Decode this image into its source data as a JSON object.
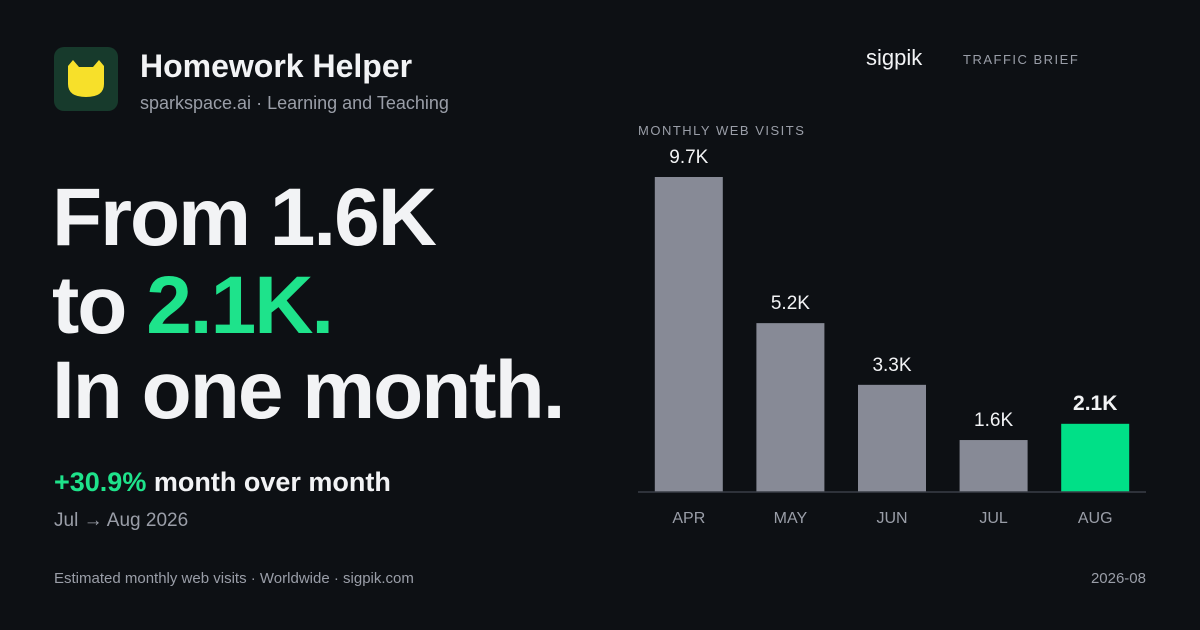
{
  "brand": {
    "title": "Homework Helper",
    "domain": "sparkspace.ai",
    "category": "Learning and Teaching"
  },
  "header": {
    "logo": "sigpik",
    "tag": "TRAFFIC BRIEF"
  },
  "headline": {
    "line1": "From 1.6K",
    "line2_prefix": "to",
    "line2_value": "2.1K.",
    "line3": "In one month."
  },
  "change": {
    "value": "+30.9%",
    "text": "month over month",
    "period": "Jul → Aug 2026"
  },
  "footer": {
    "source": "Estimated monthly web visits",
    "region": "Worldwide",
    "site": "sigpik.com",
    "date": "2026-08"
  },
  "chart_data": {
    "type": "bar",
    "title": "MONTHLY WEB VISITS",
    "categories": [
      "APR",
      "MAY",
      "JUN",
      "JUL",
      "AUG"
    ],
    "values": [
      9700,
      5200,
      3300,
      1600,
      2100
    ],
    "value_labels": [
      "9.7K",
      "5.2K",
      "3.3K",
      "1.6K",
      "2.1K"
    ],
    "colors": [
      "#878a96",
      "#878a96",
      "#878a96",
      "#878a96",
      "#00e087"
    ]
  }
}
